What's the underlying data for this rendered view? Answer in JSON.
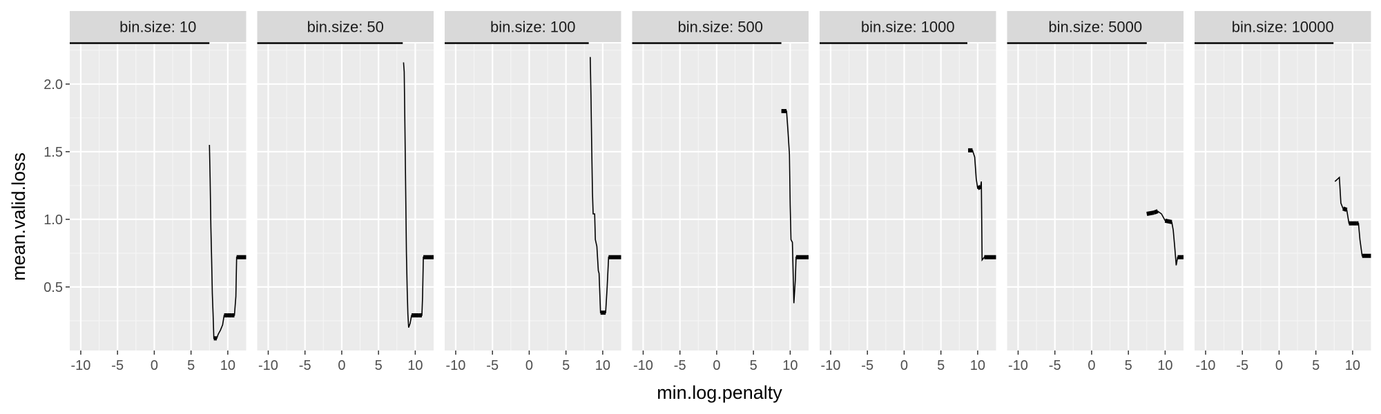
{
  "colors": {
    "panel_bg": "#ebebeb",
    "strip_bg": "#d9d9d9",
    "grid_major": "#ffffff",
    "grid_minor": "#f5f5f5",
    "data": "#000000",
    "tick": "#333333"
  },
  "chart_data": {
    "type": "line",
    "facet_variable": "bin.size",
    "facet_label_template": "bin.size: {v}",
    "xlabel": "min.log.penalty",
    "ylabel": "mean.valid.loss",
    "xlim": [
      -11.5,
      12.5
    ],
    "ylim": [
      0.03,
      2.3
    ],
    "x_ticks": [
      -10,
      -5,
      0,
      5,
      10
    ],
    "x_tick_labels": [
      "-10",
      "-5",
      "0",
      "5",
      "10"
    ],
    "y_ticks": [
      0.5,
      1.0,
      1.5,
      2.0
    ],
    "y_tick_labels": [
      "0.5",
      "1.0",
      "1.5",
      "2.0"
    ],
    "grid": true,
    "facets": [
      {
        "bin_size": "10",
        "label": "bin.size: 10",
        "baseline_end": 7.5,
        "points": [
          [
            7.5,
            1.55
          ],
          [
            7.6,
            1.3
          ],
          [
            7.7,
            0.94
          ],
          [
            7.8,
            0.7
          ],
          [
            7.9,
            0.45
          ],
          [
            8.0,
            0.3
          ],
          [
            8.1,
            0.12
          ],
          [
            8.5,
            0.12
          ],
          [
            8.7,
            0.15
          ],
          [
            9.0,
            0.18
          ],
          [
            9.3,
            0.22
          ],
          [
            9.5,
            0.29
          ],
          [
            10.0,
            0.29
          ],
          [
            10.5,
            0.29
          ],
          [
            10.9,
            0.29
          ],
          [
            11.1,
            0.43
          ],
          [
            11.2,
            0.72
          ],
          [
            12.5,
            0.72
          ]
        ]
      },
      {
        "bin_size": "50",
        "label": "bin.size: 50",
        "baseline_end": 8.3,
        "points": [
          [
            8.4,
            2.16
          ],
          [
            8.5,
            2.09
          ],
          [
            8.6,
            1.65
          ],
          [
            8.7,
            1.22
          ],
          [
            8.8,
            0.75
          ],
          [
            8.9,
            0.48
          ],
          [
            9.0,
            0.3
          ],
          [
            9.1,
            0.2
          ],
          [
            9.3,
            0.23
          ],
          [
            9.5,
            0.29
          ],
          [
            10.5,
            0.29
          ],
          [
            10.9,
            0.29
          ],
          [
            11.0,
            0.43
          ],
          [
            11.1,
            0.72
          ],
          [
            12.5,
            0.72
          ]
        ]
      },
      {
        "bin_size": "100",
        "label": "bin.size: 100",
        "baseline_end": 8.1,
        "points": [
          [
            8.3,
            2.2
          ],
          [
            8.4,
            1.9
          ],
          [
            8.5,
            1.55
          ],
          [
            8.6,
            1.2
          ],
          [
            8.7,
            1.04
          ],
          [
            8.9,
            1.04
          ],
          [
            9.0,
            0.85
          ],
          [
            9.2,
            0.8
          ],
          [
            9.4,
            0.62
          ],
          [
            9.5,
            0.6
          ],
          [
            9.7,
            0.31
          ],
          [
            10.4,
            0.31
          ],
          [
            10.6,
            0.5
          ],
          [
            10.8,
            0.72
          ],
          [
            12.5,
            0.72
          ]
        ]
      },
      {
        "bin_size": "500",
        "label": "bin.size: 500",
        "baseline_end": 8.8,
        "points": [
          [
            8.8,
            1.8
          ],
          [
            9.5,
            1.8
          ],
          [
            9.7,
            1.65
          ],
          [
            9.9,
            1.48
          ],
          [
            10.0,
            1.1
          ],
          [
            10.1,
            0.85
          ],
          [
            10.3,
            0.83
          ],
          [
            10.5,
            0.38
          ],
          [
            10.7,
            0.55
          ],
          [
            10.8,
            0.72
          ],
          [
            12.5,
            0.72
          ]
        ]
      },
      {
        "bin_size": "1000",
        "label": "bin.size: 1000",
        "baseline_end": 8.6,
        "points": [
          [
            8.7,
            1.51
          ],
          [
            9.3,
            1.51
          ],
          [
            9.6,
            1.46
          ],
          [
            9.8,
            1.3
          ],
          [
            10.0,
            1.23
          ],
          [
            10.4,
            1.24
          ],
          [
            10.5,
            1.28
          ],
          [
            10.6,
            0.7
          ],
          [
            10.9,
            0.72
          ],
          [
            12.5,
            0.72
          ]
        ]
      },
      {
        "bin_size": "5000",
        "label": "bin.size: 5000",
        "baseline_end": 7.5,
        "points": [
          [
            7.5,
            1.04
          ],
          [
            8.5,
            1.05
          ],
          [
            9.0,
            1.06
          ],
          [
            9.5,
            1.04
          ],
          [
            10.0,
            0.99
          ],
          [
            10.9,
            0.98
          ],
          [
            11.1,
            0.92
          ],
          [
            11.3,
            0.8
          ],
          [
            11.5,
            0.66
          ],
          [
            11.7,
            0.72
          ],
          [
            12.5,
            0.72
          ]
        ]
      },
      {
        "bin_size": "10000",
        "label": "bin.size: 10000",
        "baseline_end": 7.4,
        "points": [
          [
            7.6,
            1.28
          ],
          [
            8.2,
            1.31
          ],
          [
            8.4,
            1.12
          ],
          [
            8.7,
            1.08
          ],
          [
            9.2,
            1.07
          ],
          [
            9.5,
            0.97
          ],
          [
            10.5,
            0.97
          ],
          [
            10.8,
            0.97
          ],
          [
            11.0,
            0.85
          ],
          [
            11.3,
            0.73
          ],
          [
            12.5,
            0.73
          ]
        ]
      }
    ]
  }
}
